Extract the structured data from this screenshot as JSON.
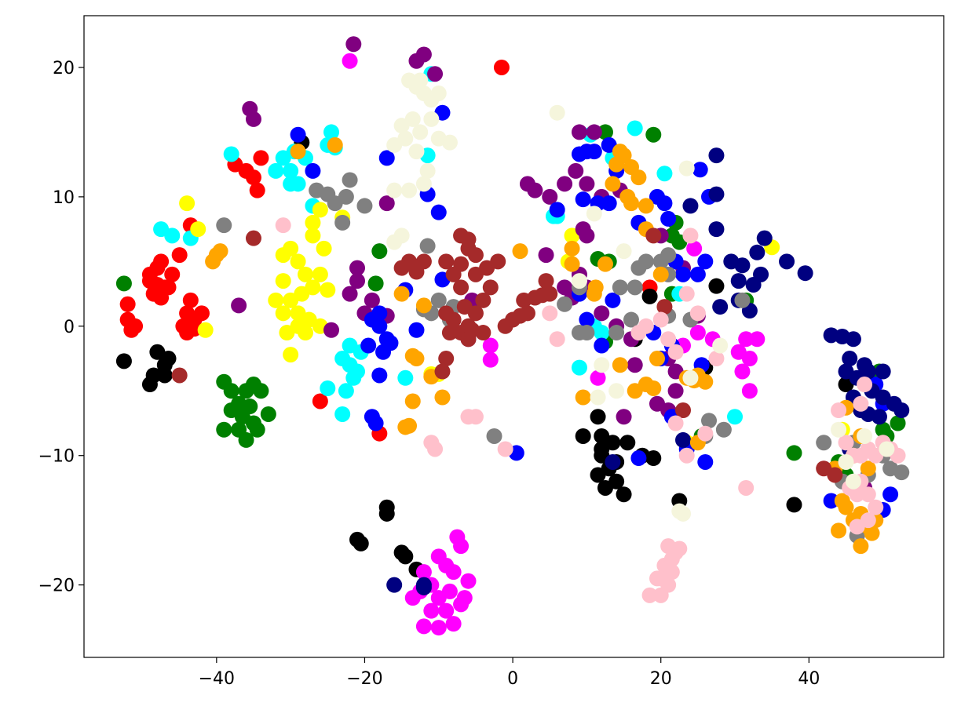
{
  "chart_data": {
    "type": "scatter",
    "xlim": [
      -57.9,
      58.2
    ],
    "ylim": [
      -25.6,
      24.0
    ],
    "xticks": [
      {
        "value": -40,
        "label": "−40"
      },
      {
        "value": -20,
        "label": "−20"
      },
      0,
      20,
      40
    ],
    "yticks": [
      {
        "value": -20,
        "label": "−20"
      },
      {
        "value": -10,
        "label": "−10"
      },
      0,
      10,
      20
    ],
    "series": [
      {
        "color": "#ff0000",
        "x": [
          -52,
          -52,
          -51.5,
          -51,
          -49,
          -48,
          -47,
          -48.5,
          -47.5,
          -46,
          -49,
          -46.5,
          -45,
          -44,
          -43,
          -44,
          -43.5,
          -42,
          -44.5,
          -37.5,
          -36,
          -35,
          -34.5,
          -34,
          -43.5,
          -1.5,
          -26,
          -18,
          18.5,
          -47.5,
          -48,
          -43
        ],
        "y": [
          1.7,
          0.5,
          -0.3,
          0,
          3.5,
          4.5,
          3,
          2.5,
          5,
          4,
          4,
          3,
          5.5,
          1,
          0.5,
          -0.5,
          2,
          1,
          0,
          12.5,
          12,
          11.5,
          10.5,
          13,
          7.8,
          20,
          -5.8,
          -8.3,
          3,
          2.2,
          3.2,
          -0.2
        ]
      },
      {
        "color": "#000000",
        "x": [
          -49,
          -48,
          -47,
          -48.5,
          -46.5,
          -52.5,
          -47,
          -28.5,
          -21,
          -20.5,
          -17,
          -17,
          -15,
          -14.5,
          -13,
          11.5,
          12,
          9.5,
          12,
          13,
          12.5,
          14,
          15,
          13.5,
          15.5,
          14,
          17.5,
          19,
          12,
          18.5,
          16.5,
          22.5,
          26,
          27.5,
          38,
          45,
          11.5
        ],
        "y": [
          -4.5,
          -2,
          -3,
          -3.8,
          -2.5,
          -2.7,
          -3.8,
          14.2,
          -16.5,
          -16.8,
          -14,
          -14.5,
          -17.5,
          -17.8,
          -18.8,
          -7,
          -8.5,
          -8.5,
          -10,
          -11,
          -12.5,
          -12,
          -13,
          -9,
          -9,
          -10.5,
          -10,
          -10.2,
          -9.5,
          2.3,
          -1,
          -13.5,
          -3.2,
          3.1,
          -13.8,
          -4.5,
          -11.5
        ]
      },
      {
        "color": "#008000",
        "x": [
          -39,
          -38,
          -37,
          -36,
          -35,
          -34,
          -36.5,
          -35,
          -37,
          -39,
          -36,
          -34.5,
          -33,
          -38,
          -35.5,
          -52.5,
          -18,
          -18.5,
          12.5,
          19,
          11.5,
          13,
          21.5,
          22,
          22.5,
          21.5,
          25.5,
          12.5,
          38,
          44,
          45,
          49.5,
          50,
          50.5,
          52,
          31.5
        ],
        "y": [
          -4.3,
          -5,
          -6,
          -5,
          -4.5,
          -5,
          -7,
          -7.5,
          -8,
          -8,
          -8.8,
          -8,
          -6.8,
          -6.5,
          -6.2,
          3.3,
          5.8,
          3.3,
          15,
          14.8,
          5.2,
          5,
          7,
          8,
          6.5,
          2.5,
          -8.5,
          -1.2,
          -9.8,
          -10.5,
          -11.5,
          -3.5,
          -8,
          -8.5,
          -7.5,
          2
        ]
      },
      {
        "color": "#00ffff",
        "x": [
          -38,
          -32,
          -31,
          -30,
          -29,
          -28,
          -30,
          -29.5,
          -25,
          -24.5,
          -24,
          -27,
          -23,
          -22,
          -21.5,
          -22.5,
          -21,
          -23,
          -25,
          -20.5,
          -22,
          -14.5,
          -11,
          -11.5,
          6,
          5.5,
          10.5,
          13.5,
          16.5,
          20.5,
          11,
          12,
          9,
          30,
          22.5,
          -43.5,
          -46,
          -47.5
        ],
        "y": [
          13.3,
          12,
          13,
          12,
          11,
          13,
          11,
          13.5,
          14,
          15,
          13.8,
          9.3,
          -2.5,
          -3,
          -4,
          -5,
          -3.5,
          -6.8,
          -4.8,
          -2,
          -1.5,
          -4,
          19.5,
          13.2,
          8.5,
          8.5,
          14.8,
          13,
          15.3,
          11.8,
          0,
          -0.5,
          -3.2,
          -7,
          2.5,
          6.8,
          7,
          7.5
        ]
      },
      {
        "color": "#ffff00",
        "x": [
          -30,
          -29,
          -28,
          -31,
          -32,
          -30,
          -31,
          -29,
          -28,
          -30,
          -27,
          -26,
          -25.5,
          -27,
          -26,
          -27,
          -29,
          -30.5,
          -27.5,
          -26,
          -25,
          -42.5,
          -44,
          -41.5,
          -23,
          -11,
          -10,
          7.5,
          8,
          23.5,
          35,
          44.5,
          -31,
          -28.5
        ],
        "y": [
          6,
          5,
          4,
          3.5,
          2,
          2,
          1,
          0,
          -0.5,
          -2.2,
          3,
          4,
          6,
          7,
          9,
          8,
          1,
          -0.5,
          0.5,
          0,
          2.8,
          7.5,
          9.5,
          -0.3,
          8.4,
          -3.7,
          -3.7,
          5,
          7,
          -9,
          6.1,
          -8,
          5.5,
          2.5
        ]
      },
      {
        "color": "#ff00ff",
        "x": [
          -10,
          -12,
          -11,
          -9,
          -8,
          -10,
          -11,
          -9,
          -8,
          -12,
          -10,
          -7,
          -7.5,
          -6,
          -7,
          -6.5,
          -12.5,
          -13.5,
          -8.5,
          -22,
          -3,
          -3,
          11.5,
          24.5,
          30.5,
          31.5,
          32,
          31,
          32,
          33,
          25,
          27,
          23
        ],
        "y": [
          -17.8,
          -19,
          -20,
          -18.5,
          -19,
          -21,
          -22,
          -22,
          -23,
          -23.2,
          -23.3,
          -17,
          -16.3,
          -19.7,
          -21.5,
          -21,
          -20.5,
          -21,
          -20.5,
          20.5,
          -1.5,
          -2.6,
          -4,
          6,
          -2,
          -1,
          -2.5,
          -3.5,
          -5,
          -1,
          -0.5,
          -1,
          -1.5
        ]
      },
      {
        "color": "#800080",
        "x": [
          -21.5,
          -13,
          -12,
          -10.5,
          -35,
          -35.5,
          -17,
          -21,
          -21,
          -22,
          -19,
          -20,
          -17,
          -37,
          -24.5,
          -6,
          -5.5,
          2,
          3,
          5,
          7,
          8.5,
          10,
          12,
          14.5,
          9,
          11,
          4.5,
          7,
          9,
          10,
          12,
          14,
          16,
          16.5,
          21,
          22,
          22,
          21,
          15,
          19.5,
          23,
          20,
          25,
          8,
          10,
          47.5,
          9.5
        ],
        "y": [
          21.8,
          20.5,
          21,
          19.5,
          16,
          16.8,
          9.5,
          4.5,
          3.5,
          2.5,
          2,
          1,
          0.8,
          1.6,
          -0.3,
          -1,
          2,
          11,
          10.5,
          10,
          11,
          12,
          11,
          10,
          10.5,
          15,
          15,
          5.5,
          3,
          4,
          3,
          1,
          0,
          -1,
          -3,
          -2.5,
          -3.5,
          -5,
          -6.5,
          -7,
          -6,
          4.5,
          7,
          0.8,
          2.2,
          7,
          -12.5,
          7.5
        ]
      },
      {
        "color": "#0000ff",
        "x": [
          -29,
          -27,
          -17,
          -11.5,
          -10,
          -9.5,
          -18,
          -19,
          -18,
          -17,
          -19.5,
          -17.5,
          -16.5,
          -18,
          -19,
          -18.5,
          -14.5,
          -13,
          -9.5,
          0.5,
          13,
          14,
          11,
          10,
          9,
          11.5,
          13,
          9.5,
          19.5,
          20.5,
          21,
          17,
          22,
          23,
          25,
          26,
          9,
          10,
          12,
          13.5,
          19,
          21.5,
          20,
          25.5,
          26,
          23.5,
          21.5,
          17,
          43,
          49,
          50,
          51,
          50,
          26.5,
          6,
          25.3
        ],
        "y": [
          14.8,
          12,
          13,
          10.2,
          8.8,
          16.5,
          1,
          0.5,
          0,
          -1,
          -1.5,
          -2,
          -1.3,
          -3.8,
          -7,
          -7.5,
          2.8,
          -0.3,
          3.6,
          -9.8,
          14,
          12,
          13.5,
          13.5,
          13.3,
          9.5,
          9.5,
          9.8,
          10,
          9.5,
          8.3,
          8,
          5,
          4,
          4,
          5,
          2.5,
          0.5,
          -1.5,
          2,
          -0.5,
          -1.5,
          -2.5,
          -3,
          -10.5,
          -9.5,
          -7,
          -10.2,
          -13.5,
          -4.5,
          -6,
          -13,
          -14.2,
          10,
          9,
          12.1
        ]
      },
      {
        "color": "#000080",
        "x": [
          27.5,
          27.5,
          24,
          27.5,
          29.5,
          31,
          30.5,
          32.5,
          33.5,
          33,
          34,
          37,
          39.5,
          30.5,
          32,
          28,
          43,
          44.5,
          46,
          45.5,
          45,
          46.5,
          47.5,
          48,
          50,
          48.5,
          50,
          51.5,
          52.5,
          49.5,
          47,
          48,
          46,
          13.5,
          -16,
          -12,
          -12,
          45.5,
          23
        ],
        "y": [
          13.2,
          10.2,
          9.3,
          7.5,
          5,
          4.7,
          3.5,
          3.2,
          4,
          5.7,
          6.8,
          5,
          4.1,
          2,
          1.2,
          1.5,
          -0.7,
          -0.8,
          -1,
          -2.5,
          -3.5,
          -4,
          -3,
          -3.5,
          -3.5,
          -5,
          -5.5,
          -6,
          -6.5,
          -7,
          -6.5,
          -6.8,
          -5.5,
          -10.5,
          -20,
          -20,
          -20.2,
          -9.5,
          -8.8
        ]
      },
      {
        "color": "#808080",
        "x": [
          -22.5,
          -22,
          -24,
          -26.5,
          -20,
          -23,
          -25,
          -39,
          -8,
          -10,
          -11,
          -12,
          -11.5,
          -8.5,
          -2.5,
          7,
          9,
          10,
          9,
          14,
          16.5,
          17,
          18,
          20,
          21,
          21,
          21,
          24,
          26.5,
          28.5,
          26,
          31,
          42,
          46,
          44.5,
          46.5,
          50,
          51,
          52.5,
          48,
          14.5,
          16
        ],
        "y": [
          10,
          11.3,
          9.5,
          10.5,
          9.3,
          8,
          10.2,
          7.8,
          1.5,
          2,
          1,
          1.3,
          6.2,
          0.5,
          -8.5,
          1.7,
          3,
          -0.5,
          -0.5,
          -0.5,
          3,
          4.5,
          5,
          5,
          4,
          5.5,
          0.8,
          0.5,
          -7.3,
          -8,
          -8.5,
          2,
          -9,
          -9,
          -12,
          -16.2,
          -10,
          -11,
          -11.3,
          -11.5,
          3,
          0.5
        ]
      },
      {
        "color": "#ffa500",
        "x": [
          -40.5,
          -40,
          -39.5,
          -29,
          -24,
          -13.5,
          -13,
          -13.5,
          -14.5,
          -14,
          -11,
          -15,
          -12,
          -9.5,
          1,
          8,
          11,
          11.2,
          12.5,
          14.5,
          13.5,
          15.5,
          16,
          17,
          14,
          14.5,
          15,
          16,
          18,
          18,
          20,
          23.5,
          24.5,
          25,
          26,
          18,
          19,
          19.5,
          16.5,
          25,
          8,
          9.5,
          43.5,
          44.5,
          45,
          46,
          47,
          48,
          49,
          48.5,
          47,
          44,
          48,
          46,
          47,
          45
        ],
        "y": [
          5,
          5.5,
          5.8,
          13.5,
          14,
          -2.3,
          -2.5,
          -5.8,
          -7.8,
          -7.7,
          -3.9,
          2.5,
          1.6,
          -5.5,
          5.8,
          6,
          2.5,
          3,
          4.8,
          -3,
          11,
          10,
          9.5,
          11.5,
          12.5,
          13.5,
          13.2,
          12.3,
          9.3,
          7.5,
          4,
          -4,
          -4.2,
          -3.8,
          -4.3,
          -4.5,
          -4.8,
          -2.5,
          -5,
          -9,
          4.8,
          -5.5,
          -11,
          -13.5,
          -14,
          -15,
          -14.5,
          -15.5,
          -15,
          -16,
          -17,
          -15.8,
          -11,
          -10,
          -8.5,
          -6.3
        ]
      },
      {
        "color": "#a52a2a",
        "x": [
          -35,
          -45,
          -9,
          -7,
          -6,
          -5,
          -8,
          -7,
          -5,
          -3.5,
          -9,
          -8,
          -6,
          -5,
          -4,
          -7,
          -8.5,
          -6.5,
          -4,
          -3,
          -2,
          -6,
          -5.5,
          -9,
          -9.5,
          -13,
          -14,
          -12,
          -15,
          -1,
          0,
          1.5,
          2,
          3,
          4,
          5,
          4.5,
          1,
          19,
          23,
          20.5,
          42,
          43.5,
          -6,
          -7
        ],
        "y": [
          6.8,
          -3.8,
          5,
          7,
          6,
          5.5,
          4,
          3,
          4,
          4.5,
          1,
          0.5,
          0,
          1,
          -0.5,
          -0.5,
          -0.5,
          1.5,
          2,
          3,
          5,
          -1,
          -0.3,
          -2.5,
          -3.5,
          4.2,
          5,
          5,
          4.5,
          0,
          0.5,
          2,
          1,
          2.2,
          2.4,
          2.5,
          3.5,
          0.8,
          7,
          -6.5,
          1.5,
          -11,
          -11.5,
          6.7,
          4.8
        ]
      },
      {
        "color": "#ffc0cb",
        "x": [
          -31,
          -11,
          -10.5,
          -6,
          -5,
          -1,
          6,
          5,
          17,
          18,
          20,
          21,
          22,
          25,
          23.5,
          24,
          22,
          23.5,
          19.5,
          20,
          21,
          20.5,
          21.5,
          21,
          22,
          22.5,
          21.5,
          20,
          18.5,
          31.5,
          44,
          47.5,
          47,
          45,
          46,
          47,
          48,
          49,
          50,
          51,
          46.5,
          47,
          48,
          49,
          48,
          45.5,
          52,
          46.5,
          26,
          27.5
        ],
        "y": [
          7.8,
          -9,
          -9.5,
          -7,
          -7,
          -9.5,
          -1,
          1,
          -0.5,
          0,
          0.5,
          -1,
          -2,
          1,
          2.5,
          7,
          -7.5,
          -10,
          -19.5,
          -20.8,
          -20,
          -18.5,
          -18,
          -17,
          -17.5,
          -17.2,
          -19,
          -19.5,
          -20.8,
          -12.5,
          -6.5,
          -4.5,
          -6,
          -9,
          -10,
          -10,
          -9.5,
          -10,
          -9,
          -9.5,
          -13,
          -12,
          -13,
          -14,
          -15,
          -12.5,
          -10,
          -15.5,
          -8.3,
          -2.5
        ]
      },
      {
        "color": "#f5f5dc",
        "x": [
          -14,
          -13,
          -12,
          -11,
          -10,
          -13.5,
          -12.5,
          -11,
          -10,
          -14.5,
          -15,
          -13,
          -16,
          -11.5,
          -14,
          -12,
          -16,
          -8.5,
          -12.5,
          -15,
          -16,
          6,
          23.5,
          11,
          15,
          28,
          12,
          14,
          11.5,
          23,
          22.5,
          44,
          45,
          46,
          47.5,
          50.5,
          24,
          9
        ],
        "y": [
          19,
          18.5,
          18,
          17.5,
          18,
          16,
          15,
          16,
          14.5,
          14.5,
          15.5,
          13.5,
          14,
          12,
          10.5,
          11,
          10.5,
          14.2,
          19,
          7,
          6.5,
          16.5,
          12.2,
          8.7,
          5.8,
          -1.5,
          -3,
          -5,
          -5.5,
          -14.5,
          -14.3,
          -8,
          -10.5,
          -12,
          -8.5,
          -9.5,
          -4,
          3.5
        ]
      }
    ]
  }
}
